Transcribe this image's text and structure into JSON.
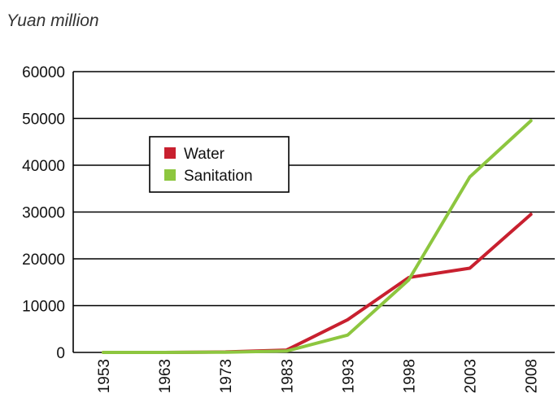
{
  "chart_data": {
    "type": "line",
    "unit_label": "Yuan million",
    "categories": [
      "1953",
      "1963",
      "1973",
      "1983",
      "1993",
      "1998",
      "2003",
      "2008"
    ],
    "y_ticks": [
      "0",
      "10000",
      "20000",
      "30000",
      "40000",
      "50000",
      "60000"
    ],
    "ylim": [
      0,
      60000
    ],
    "grid": true,
    "legend_position": "top-left",
    "series": [
      {
        "name": "Water",
        "color": "#c8202f",
        "values": [
          0,
          0,
          100,
          500,
          7000,
          16000,
          18000,
          29500
        ]
      },
      {
        "name": "Sanitation",
        "color": "#8dc63f",
        "values": [
          0,
          0,
          50,
          300,
          3700,
          15500,
          37500,
          49500
        ]
      }
    ]
  }
}
